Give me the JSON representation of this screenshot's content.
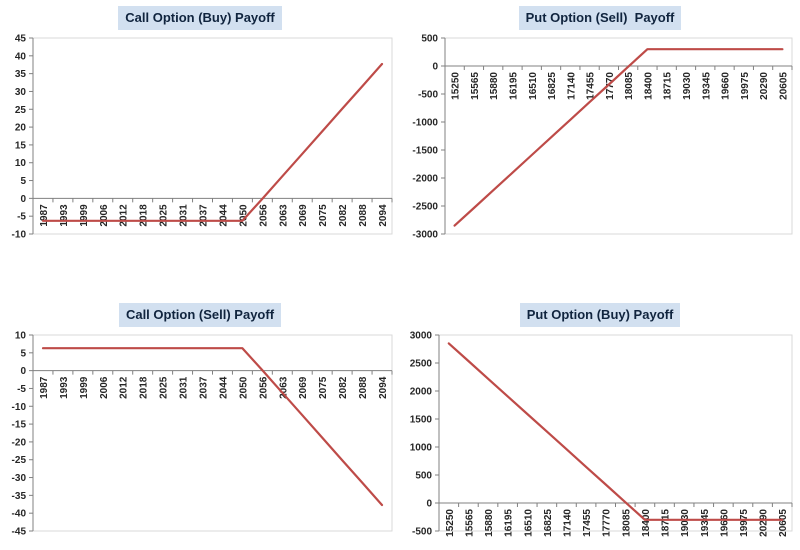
{
  "page": {
    "background": "#ffffff"
  },
  "style": {
    "line_color": "#be4b48",
    "axis_color": "#808080",
    "plot_border_color": "#d9d9d9",
    "label_color": "#262626",
    "title_bg": "#d2e0f0",
    "title_color": "#10243e"
  },
  "chart_data": [
    {
      "id": "call-buy",
      "type": "line",
      "title": "Call Option (Buy) Payoff",
      "xlabel": "",
      "ylabel": "",
      "grid": false,
      "legend_position": "none",
      "categories": [
        "1987",
        "1993",
        "1999",
        "2006",
        "2012",
        "2018",
        "2025",
        "2031",
        "2037",
        "2044",
        "2050",
        "2056",
        "2063",
        "2069",
        "2075",
        "2082",
        "2088",
        "2094"
      ],
      "values": [
        -6.3,
        -6.3,
        -6.3,
        -6.3,
        -6.3,
        -6.3,
        -6.3,
        -6.3,
        -6.3,
        -6.3,
        -6.3,
        -0.1,
        6.2,
        12.5,
        18.8,
        25.1,
        31.4,
        37.7
      ],
      "ylim": [
        -10,
        45
      ],
      "ytick_step": 5
    },
    {
      "id": "put-sell",
      "type": "line",
      "title": "Put Option (Sell)  Payoff",
      "xlabel": "",
      "ylabel": "",
      "grid": false,
      "legend_position": "none",
      "categories": [
        "15250",
        "15565",
        "15880",
        "16195",
        "16510",
        "16825",
        "17140",
        "17455",
        "17770",
        "18085",
        "18400",
        "18715",
        "19030",
        "19345",
        "19660",
        "19975",
        "20290",
        "20605"
      ],
      "values": [
        -2850,
        -2535,
        -2220,
        -1905,
        -1590,
        -1275,
        -960,
        -645,
        -330,
        -15,
        300,
        300,
        300,
        300,
        300,
        300,
        300,
        300
      ],
      "ylim": [
        -3000,
        500
      ],
      "ytick_step": 500
    },
    {
      "id": "call-sell",
      "type": "line",
      "title": "Call Option (Sell) Payoff",
      "xlabel": "",
      "ylabel": "",
      "grid": false,
      "legend_position": "none",
      "categories": [
        "1987",
        "1993",
        "1999",
        "2006",
        "2012",
        "2018",
        "2025",
        "2031",
        "2037",
        "2044",
        "2050",
        "2056",
        "2063",
        "2069",
        "2075",
        "2082",
        "2088",
        "2094"
      ],
      "values": [
        6.3,
        6.3,
        6.3,
        6.3,
        6.3,
        6.3,
        6.3,
        6.3,
        6.3,
        6.3,
        6.3,
        0.1,
        -6.2,
        -12.5,
        -18.8,
        -25.1,
        -31.4,
        -37.7
      ],
      "ylim": [
        -45,
        10
      ],
      "ytick_step": 5
    },
    {
      "id": "put-buy",
      "type": "line",
      "title": "Put Option (Buy) Payoff",
      "xlabel": "",
      "ylabel": "",
      "grid": false,
      "legend_position": "none",
      "categories": [
        "15250",
        "15565",
        "15880",
        "16195",
        "16510",
        "16825",
        "17140",
        "17455",
        "17770",
        "18085",
        "18400",
        "18715",
        "19030",
        "19345",
        "19660",
        "19975",
        "20290",
        "20605"
      ],
      "values": [
        2850,
        2535,
        2220,
        1905,
        1590,
        1275,
        960,
        645,
        330,
        15,
        -300,
        -300,
        -300,
        -300,
        -300,
        -300,
        -300,
        -300
      ],
      "ylim": [
        -500,
        3000
      ],
      "ytick_step": 500
    }
  ]
}
